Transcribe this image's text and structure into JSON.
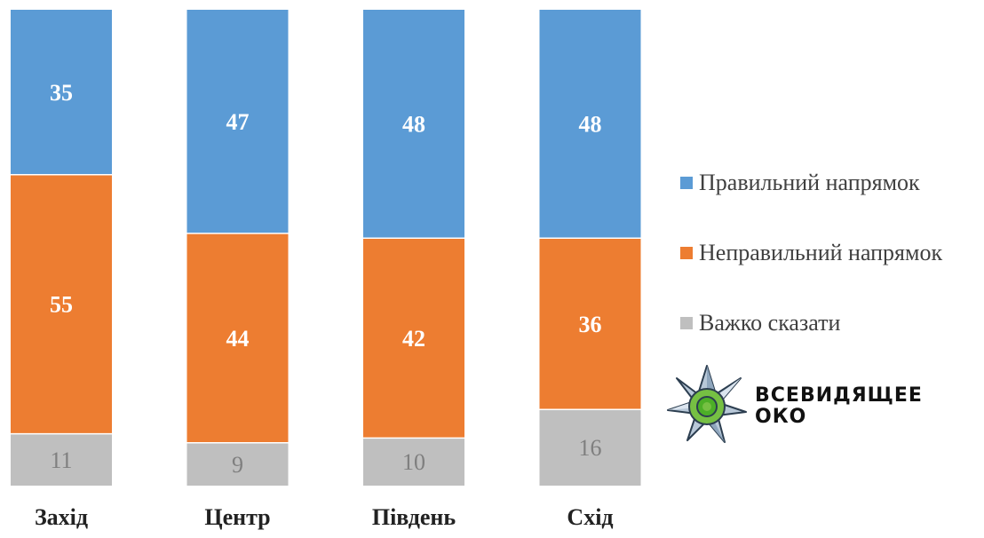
{
  "chart_data": {
    "type": "bar",
    "stacked": true,
    "normalized": true,
    "categories": [
      "Захід",
      "Центр",
      "Південь",
      "Схід"
    ],
    "series": [
      {
        "name": "Важко сказати",
        "values": [
          11,
          9,
          10,
          16
        ],
        "color": "#bfbfbf",
        "label_style": "light"
      },
      {
        "name": "Неправильний напрямок",
        "values": [
          55,
          44,
          42,
          36
        ],
        "color": "#ed7d31",
        "label_style": "bold"
      },
      {
        "name": "Правильний напрямок",
        "values": [
          35,
          47,
          48,
          48
        ],
        "color": "#5b9bd5",
        "label_style": "bold"
      }
    ],
    "legend_order": [
      "Правильний напрямок",
      "Неправильний напрямок",
      "Важко сказати"
    ],
    "legend_position": "right",
    "grid": false,
    "title": "",
    "xlabel": "",
    "ylabel": ""
  },
  "legend": {
    "items": [
      {
        "label": "Правильний напрямок",
        "color": "#5b9bd5"
      },
      {
        "label": "Неправильний напрямок",
        "color": "#ed7d31"
      },
      {
        "label": "Важко сказати",
        "color": "#bfbfbf"
      }
    ]
  },
  "logo": {
    "line1": "ВСЕВИДЯЩЕЕ",
    "line2": "ОКО",
    "icon": "star-eye-icon"
  }
}
